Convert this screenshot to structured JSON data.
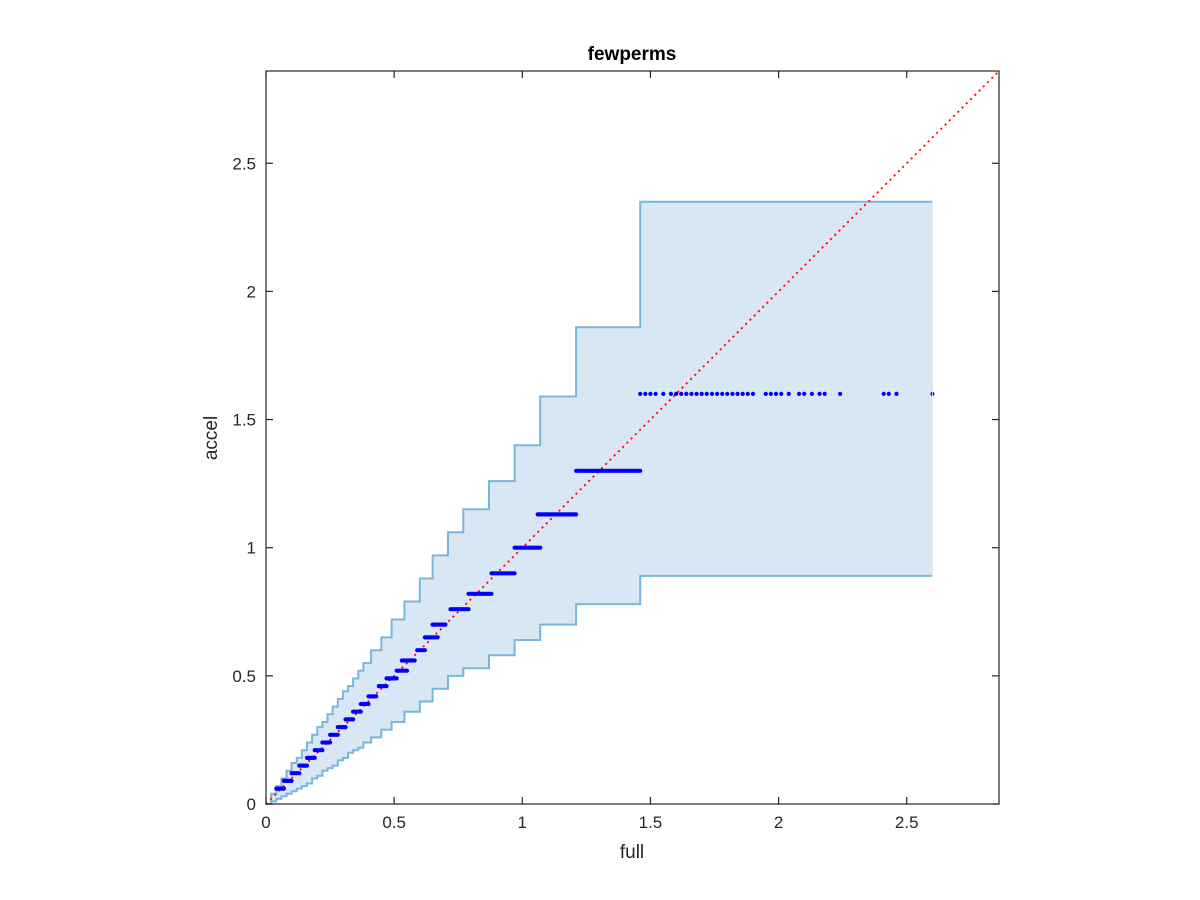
{
  "chart_data": {
    "type": "scatter",
    "title": "fewperms",
    "xlabel": "full",
    "ylabel": "accel",
    "xlim": [
      0,
      2.86
    ],
    "ylim": [
      0,
      2.86
    ],
    "xticks": [
      0,
      0.5,
      1,
      1.5,
      2,
      2.5
    ],
    "xtick_labels": [
      "0",
      "0.5",
      "1",
      "1.5",
      "2",
      "2.5"
    ],
    "yticks": [
      0,
      0.5,
      1,
      1.5,
      2,
      2.5
    ],
    "ytick_labels": [
      "0",
      "0.5",
      "1",
      "1.5",
      "2",
      "2.5"
    ],
    "grid": false,
    "colors": {
      "band_fill": "#d8e7f3",
      "band_edge": "#7ab6dc",
      "points": "#0000ff",
      "reference_line": "#ff0000",
      "axes": "#262626"
    },
    "band": {
      "upper": [
        [
          0.0,
          0.0
        ],
        [
          0.02,
          0.04
        ],
        [
          0.04,
          0.07
        ],
        [
          0.06,
          0.1
        ],
        [
          0.08,
          0.13
        ],
        [
          0.1,
          0.16
        ],
        [
          0.12,
          0.18
        ],
        [
          0.14,
          0.21
        ],
        [
          0.16,
          0.24
        ],
        [
          0.18,
          0.27
        ],
        [
          0.2,
          0.3
        ],
        [
          0.22,
          0.32
        ],
        [
          0.24,
          0.35
        ],
        [
          0.26,
          0.38
        ],
        [
          0.28,
          0.41
        ],
        [
          0.3,
          0.44
        ],
        [
          0.32,
          0.46
        ],
        [
          0.34,
          0.49
        ],
        [
          0.36,
          0.52
        ],
        [
          0.38,
          0.55
        ],
        [
          0.41,
          0.6
        ],
        [
          0.45,
          0.65
        ],
        [
          0.49,
          0.72
        ],
        [
          0.54,
          0.79
        ],
        [
          0.6,
          0.88
        ],
        [
          0.65,
          0.97
        ],
        [
          0.71,
          1.06
        ],
        [
          0.77,
          1.15
        ],
        [
          0.87,
          1.26
        ],
        [
          0.97,
          1.4
        ],
        [
          1.07,
          1.59
        ],
        [
          1.21,
          1.86
        ],
        [
          1.46,
          2.35
        ],
        [
          2.6,
          2.35
        ]
      ],
      "lower": [
        [
          0.0,
          0.0
        ],
        [
          0.02,
          0.01
        ],
        [
          0.04,
          0.02
        ],
        [
          0.06,
          0.03
        ],
        [
          0.08,
          0.04
        ],
        [
          0.1,
          0.05
        ],
        [
          0.12,
          0.06
        ],
        [
          0.14,
          0.07
        ],
        [
          0.16,
          0.08
        ],
        [
          0.18,
          0.1
        ],
        [
          0.2,
          0.11
        ],
        [
          0.22,
          0.13
        ],
        [
          0.24,
          0.14
        ],
        [
          0.26,
          0.15
        ],
        [
          0.28,
          0.17
        ],
        [
          0.3,
          0.18
        ],
        [
          0.32,
          0.2
        ],
        [
          0.34,
          0.21
        ],
        [
          0.36,
          0.22
        ],
        [
          0.38,
          0.24
        ],
        [
          0.41,
          0.26
        ],
        [
          0.45,
          0.29
        ],
        [
          0.49,
          0.32
        ],
        [
          0.54,
          0.36
        ],
        [
          0.6,
          0.4
        ],
        [
          0.65,
          0.45
        ],
        [
          0.71,
          0.5
        ],
        [
          0.77,
          0.53
        ],
        [
          0.87,
          0.58
        ],
        [
          0.97,
          0.64
        ],
        [
          1.07,
          0.7
        ],
        [
          1.21,
          0.78
        ],
        [
          1.46,
          0.89
        ],
        [
          2.6,
          0.89
        ]
      ]
    },
    "reference_line": {
      "from": [
        0,
        0
      ],
      "to": [
        2.86,
        2.86
      ],
      "style": "dotted"
    },
    "series": [
      {
        "steps": [
          [
            0.04,
            0.07,
            0.06
          ],
          [
            0.07,
            0.1,
            0.09
          ],
          [
            0.1,
            0.13,
            0.12
          ],
          [
            0.13,
            0.16,
            0.15
          ],
          [
            0.16,
            0.19,
            0.18
          ],
          [
            0.19,
            0.22,
            0.21
          ],
          [
            0.22,
            0.25,
            0.24
          ],
          [
            0.25,
            0.28,
            0.27
          ],
          [
            0.28,
            0.31,
            0.3
          ],
          [
            0.31,
            0.34,
            0.33
          ],
          [
            0.34,
            0.37,
            0.36
          ],
          [
            0.37,
            0.4,
            0.39
          ],
          [
            0.4,
            0.43,
            0.42
          ],
          [
            0.44,
            0.47,
            0.46
          ],
          [
            0.47,
            0.51,
            0.49
          ],
          [
            0.51,
            0.55,
            0.52
          ],
          [
            0.53,
            0.58,
            0.56
          ],
          [
            0.59,
            0.62,
            0.6
          ],
          [
            0.62,
            0.67,
            0.65
          ],
          [
            0.65,
            0.7,
            0.7
          ],
          [
            0.72,
            0.79,
            0.76
          ],
          [
            0.79,
            0.88,
            0.82
          ],
          [
            0.88,
            0.97,
            0.9
          ],
          [
            0.97,
            1.07,
            1.0
          ],
          [
            1.06,
            1.21,
            1.13
          ],
          [
            1.21,
            1.46,
            1.3
          ]
        ],
        "scatter_points": [
          [
            1.46,
            1.6
          ],
          [
            1.48,
            1.6
          ],
          [
            1.5,
            1.6
          ],
          [
            1.52,
            1.6
          ],
          [
            1.55,
            1.6
          ],
          [
            1.58,
            1.6
          ],
          [
            1.6,
            1.6
          ],
          [
            1.62,
            1.6
          ],
          [
            1.64,
            1.6
          ],
          [
            1.66,
            1.6
          ],
          [
            1.68,
            1.6
          ],
          [
            1.7,
            1.6
          ],
          [
            1.72,
            1.6
          ],
          [
            1.74,
            1.6
          ],
          [
            1.76,
            1.6
          ],
          [
            1.78,
            1.6
          ],
          [
            1.8,
            1.6
          ],
          [
            1.82,
            1.6
          ],
          [
            1.84,
            1.6
          ],
          [
            1.86,
            1.6
          ],
          [
            1.88,
            1.6
          ],
          [
            1.9,
            1.6
          ],
          [
            1.95,
            1.6
          ],
          [
            1.97,
            1.6
          ],
          [
            1.99,
            1.6
          ],
          [
            2.01,
            1.6
          ],
          [
            2.04,
            1.6
          ],
          [
            2.08,
            1.6
          ],
          [
            2.1,
            1.6
          ],
          [
            2.13,
            1.6
          ],
          [
            2.16,
            1.6
          ],
          [
            2.18,
            1.6
          ],
          [
            2.24,
            1.6
          ],
          [
            2.41,
            1.6
          ],
          [
            2.43,
            1.6
          ],
          [
            2.46,
            1.6
          ],
          [
            2.6,
            1.6
          ]
        ]
      }
    ]
  }
}
